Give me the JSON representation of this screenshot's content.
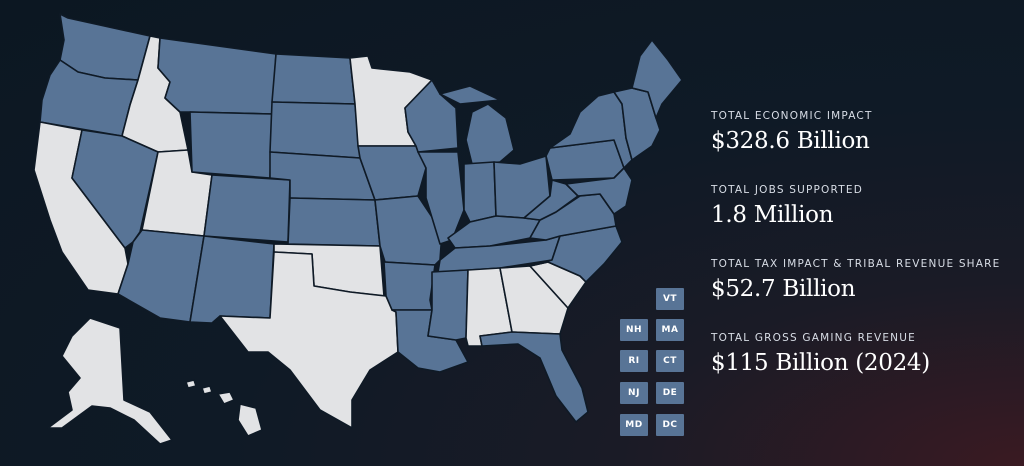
{
  "colors": {
    "active_state": "#587496",
    "inactive_state": "#e2e3e5",
    "border": "#0f1a26"
  },
  "states": [
    {
      "id": "WA",
      "status": "active"
    },
    {
      "id": "OR",
      "status": "active"
    },
    {
      "id": "CA",
      "status": "inactive"
    },
    {
      "id": "ID",
      "status": "inactive"
    },
    {
      "id": "NV",
      "status": "active"
    },
    {
      "id": "UT",
      "status": "inactive"
    },
    {
      "id": "AZ",
      "status": "active"
    },
    {
      "id": "MT",
      "status": "active"
    },
    {
      "id": "WY",
      "status": "active"
    },
    {
      "id": "CO",
      "status": "active"
    },
    {
      "id": "NM",
      "status": "active"
    },
    {
      "id": "ND",
      "status": "active"
    },
    {
      "id": "SD",
      "status": "active"
    },
    {
      "id": "NE",
      "status": "active"
    },
    {
      "id": "KS",
      "status": "active"
    },
    {
      "id": "OK",
      "status": "inactive"
    },
    {
      "id": "TX",
      "status": "inactive"
    },
    {
      "id": "MN",
      "status": "inactive"
    },
    {
      "id": "IA",
      "status": "active"
    },
    {
      "id": "MO",
      "status": "active"
    },
    {
      "id": "AR",
      "status": "active"
    },
    {
      "id": "LA",
      "status": "active"
    },
    {
      "id": "WI",
      "status": "active"
    },
    {
      "id": "IL",
      "status": "active"
    },
    {
      "id": "MI",
      "status": "active"
    },
    {
      "id": "IN",
      "status": "active"
    },
    {
      "id": "OH",
      "status": "active"
    },
    {
      "id": "KY",
      "status": "active"
    },
    {
      "id": "TN",
      "status": "active"
    },
    {
      "id": "MS",
      "status": "active"
    },
    {
      "id": "AL",
      "status": "inactive"
    },
    {
      "id": "GA",
      "status": "inactive"
    },
    {
      "id": "FL",
      "status": "active"
    },
    {
      "id": "SC",
      "status": "inactive"
    },
    {
      "id": "NC",
      "status": "active"
    },
    {
      "id": "VA",
      "status": "active"
    },
    {
      "id": "WV",
      "status": "active"
    },
    {
      "id": "PA",
      "status": "active"
    },
    {
      "id": "NY",
      "status": "active"
    },
    {
      "id": "ME",
      "status": "active"
    },
    {
      "id": "AK",
      "status": "inactive"
    },
    {
      "id": "HI",
      "status": "inactive"
    }
  ],
  "small_states": [
    {
      "label": "VT",
      "status": "active"
    },
    {
      "label": "NH",
      "status": "active"
    },
    {
      "label": "MA",
      "status": "active"
    },
    {
      "label": "RI",
      "status": "active"
    },
    {
      "label": "CT",
      "status": "active"
    },
    {
      "label": "NJ",
      "status": "active"
    },
    {
      "label": "DE",
      "status": "active"
    },
    {
      "label": "MD",
      "status": "active"
    },
    {
      "label": "DC",
      "status": "active"
    }
  ],
  "stats": [
    {
      "label": "TOTAL ECONOMIC IMPACT",
      "value": "$328.6 Billion"
    },
    {
      "label": "TOTAL JOBS SUPPORTED",
      "value": "1.8 Million"
    },
    {
      "label": "TOTAL TAX IMPACT & TRIBAL REVENUE SHARE",
      "value": "$52.7 Billion"
    },
    {
      "label": "TOTAL GROSS GAMING REVENUE",
      "value": "$115 Billion (2024)"
    }
  ]
}
